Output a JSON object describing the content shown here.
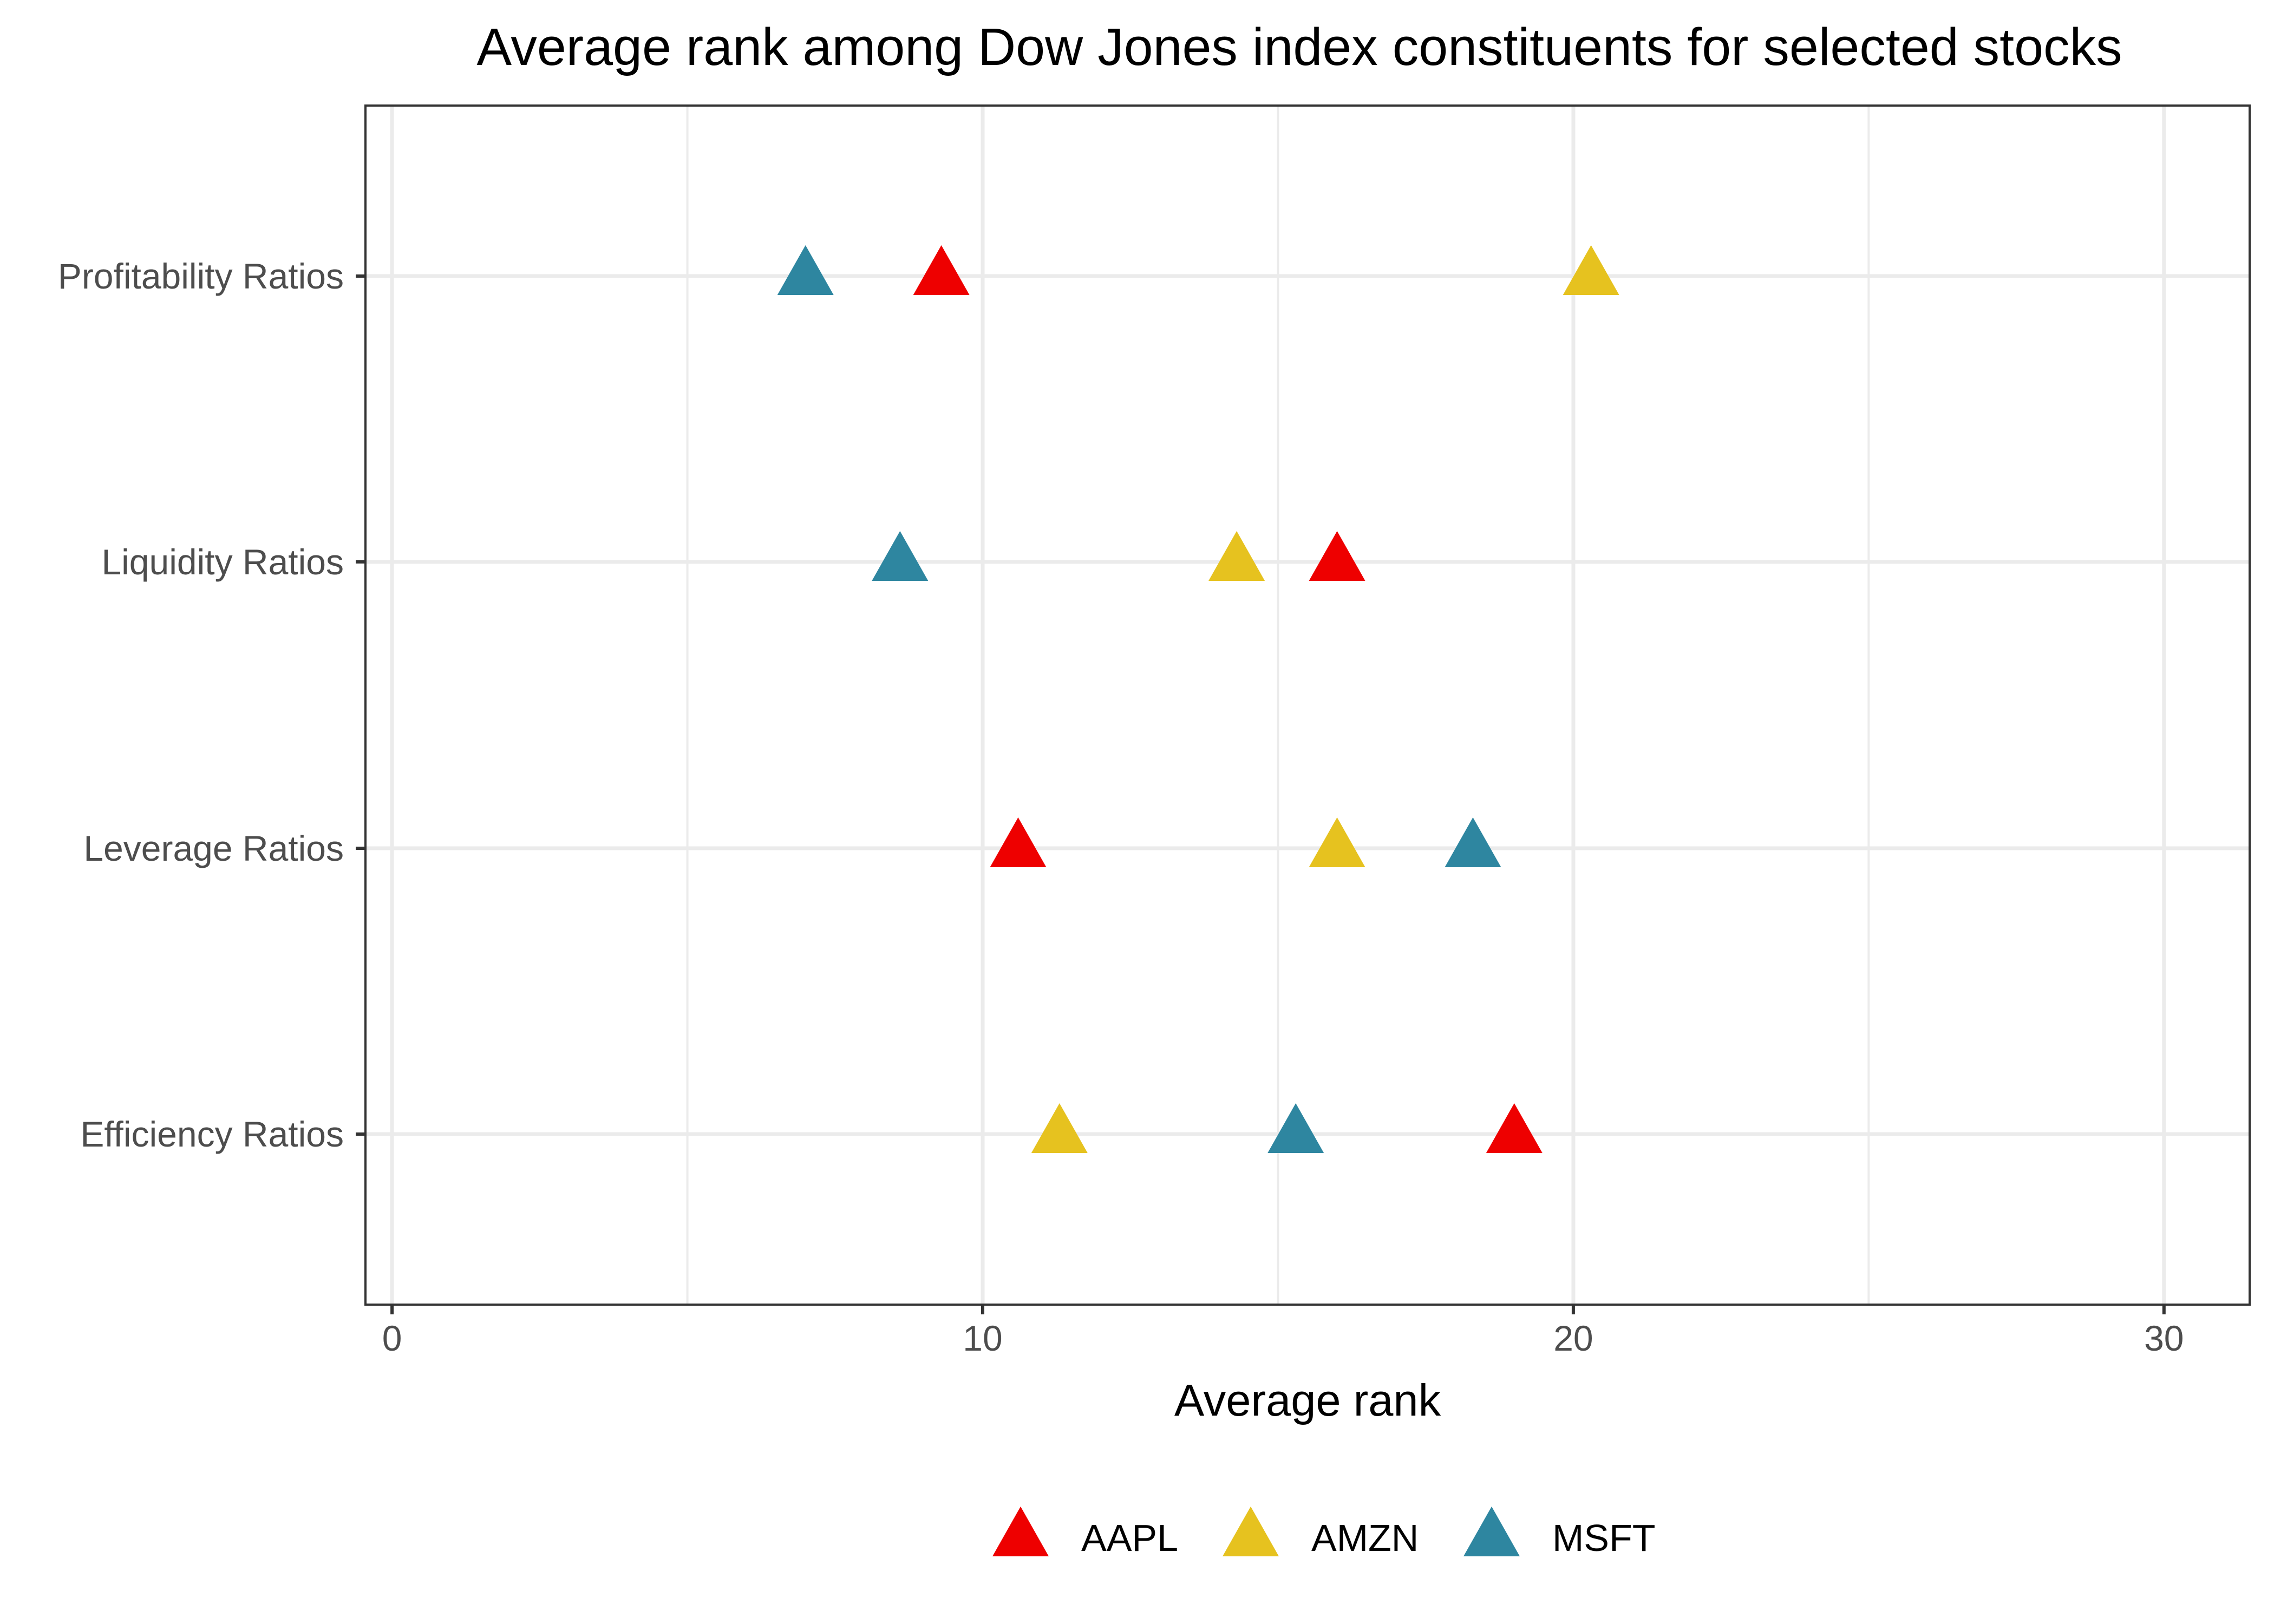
{
  "chart_data": {
    "type": "scatter",
    "title": "Average rank among Dow Jones index constituents for selected stocks",
    "xlabel": "Average rank",
    "ylabel": "",
    "xlim": [
      -0.45,
      31.45
    ],
    "xticks": [
      0,
      10,
      20,
      30
    ],
    "xtick_labels": [
      "0",
      "10",
      "20",
      "30"
    ],
    "categories": [
      "Profitability Ratios",
      "Liquidity Ratios",
      "Leverage Ratios",
      "Efficiency Ratios"
    ],
    "marker": "triangle",
    "grid": true,
    "legend_position": "bottom",
    "series": [
      {
        "name": "AAPL",
        "color": "#ee0000",
        "values": [
          9.3,
          16.0,
          10.6,
          19.0
        ]
      },
      {
        "name": "AMZN",
        "color": "#e6c21f",
        "values": [
          20.3,
          14.3,
          16.0,
          11.3
        ]
      },
      {
        "name": "MSFT",
        "color": "#2e86a0",
        "values": [
          7.0,
          8.6,
          18.3,
          15.3
        ]
      }
    ]
  }
}
